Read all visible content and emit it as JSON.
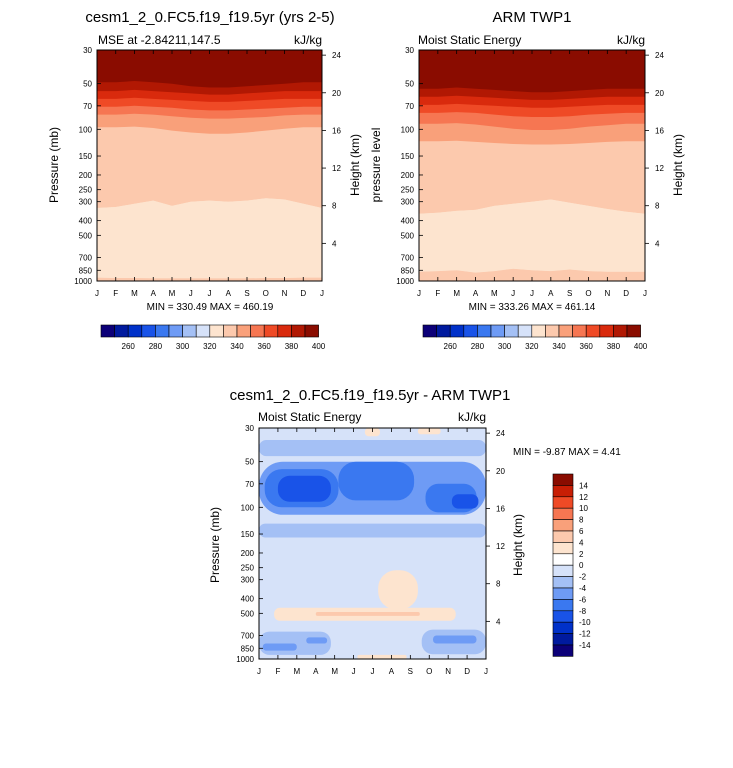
{
  "chart_data": [
    {
      "id": "model",
      "type": "heatmap",
      "title": "cesm1_2_0.FC5.f19_f19.5yr (yrs 2-5)",
      "subtitle_left": "MSE at -2.84211,147.5",
      "subtitle_right": "kJ/kg",
      "ylabel_left": "Pressure (mb)",
      "ylabel_right": "Height (km)",
      "months": [
        "J",
        "F",
        "M",
        "A",
        "M",
        "J",
        "J",
        "A",
        "S",
        "O",
        "N",
        "D",
        "J"
      ],
      "pressure_ticks": [
        "30",
        "50",
        "70",
        "100",
        "150",
        "200",
        "250",
        "300",
        "400",
        "500",
        "700",
        "850",
        "1000"
      ],
      "height_ticks": [
        "24",
        "20",
        "16",
        "12",
        "8",
        "4"
      ],
      "stats": "MIN = 330.49 MAX = 460.19",
      "bands": [
        {
          "level": 400,
          "boundary_mb": [
            49,
            49,
            48,
            49,
            50,
            52,
            53,
            53,
            52,
            51,
            50,
            49,
            49
          ]
        },
        {
          "level": 390,
          "boundary_mb": [
            56,
            56,
            55,
            56,
            57,
            58,
            59,
            59,
            58,
            57,
            56,
            56,
            56
          ]
        },
        {
          "level": 380,
          "boundary_mb": [
            63,
            63,
            62,
            63,
            64,
            65,
            66,
            66,
            65,
            64,
            63,
            63,
            63
          ]
        },
        {
          "level": 370,
          "boundary_mb": [
            71,
            71,
            70,
            71,
            72,
            74,
            75,
            75,
            74,
            73,
            72,
            71,
            71
          ]
        },
        {
          "level": 360,
          "boundary_mb": [
            80,
            80,
            79,
            80,
            82,
            84,
            85,
            85,
            84,
            83,
            81,
            80,
            80
          ]
        },
        {
          "level": 350,
          "boundary_mb": [
            97,
            97,
            96,
            98,
            102,
            105,
            107,
            107,
            105,
            102,
            99,
            97,
            97
          ]
        },
        {
          "level": 340,
          "boundary_mb": [
            330,
            325,
            310,
            295,
            320,
            300,
            295,
            300,
            295,
            285,
            290,
            310,
            330
          ]
        },
        {
          "level": 330,
          "boundary_mb": [
            950,
            955,
            955,
            960,
            960,
            960,
            960,
            960,
            960,
            955,
            955,
            950,
            950
          ]
        }
      ],
      "base_level": 340
    },
    {
      "id": "obs",
      "type": "heatmap",
      "title": "ARM TWP1",
      "subtitle_left": "Moist Static Energy",
      "subtitle_right": "kJ/kg",
      "ylabel_left": "pressure level",
      "ylabel_right": "Height (km)",
      "months": [
        "J",
        "F",
        "M",
        "A",
        "M",
        "J",
        "J",
        "A",
        "S",
        "O",
        "N",
        "D",
        "J"
      ],
      "pressure_ticks": [
        "30",
        "50",
        "70",
        "100",
        "150",
        "200",
        "250",
        "300",
        "400",
        "500",
        "700",
        "850",
        "1000"
      ],
      "height_ticks": [
        "24",
        "20",
        "16",
        "12",
        "8",
        "4"
      ],
      "stats": "MIN = 333.26 MAX = 461.14",
      "bands": [
        {
          "level": 400,
          "boundary_mb": [
            54,
            54,
            53,
            54,
            55,
            56,
            57,
            57,
            56,
            55,
            54,
            54,
            54
          ]
        },
        {
          "level": 390,
          "boundary_mb": [
            61,
            61,
            60,
            61,
            62,
            63,
            64,
            64,
            63,
            62,
            61,
            61,
            61
          ]
        },
        {
          "level": 380,
          "boundary_mb": [
            69,
            69,
            68,
            69,
            70,
            71,
            72,
            72,
            71,
            70,
            69,
            69,
            69
          ]
        },
        {
          "level": 370,
          "boundary_mb": [
            78,
            78,
            77,
            78,
            80,
            82,
            83,
            83,
            82,
            80,
            79,
            78,
            78
          ]
        },
        {
          "level": 360,
          "boundary_mb": [
            92,
            92,
            91,
            93,
            96,
            99,
            101,
            101,
            99,
            96,
            94,
            92,
            92
          ]
        },
        {
          "level": 350,
          "boundary_mb": [
            120,
            120,
            119,
            121,
            123,
            125,
            126,
            126,
            125,
            123,
            121,
            120,
            120
          ]
        },
        {
          "level": 340,
          "boundary_mb": [
            360,
            355,
            345,
            340,
            320,
            310,
            300,
            290,
            305,
            320,
            335,
            350,
            360
          ]
        },
        {
          "level": 330,
          "boundary_mb": [
            870,
            860,
            850,
            880,
            860,
            830,
            850,
            860,
            840,
            860,
            870,
            870,
            870
          ]
        }
      ],
      "base_level": 340
    },
    {
      "id": "diff",
      "type": "heatmap",
      "title": "cesm1_2_0.FC5.f19_f19.5yr - ARM TWP1",
      "subtitle_left": "Moist Static Energy",
      "subtitle_right": "kJ/kg",
      "ylabel_left": "Pressure (mb)",
      "ylabel_right": "Height (km)",
      "months": [
        "J",
        "F",
        "M",
        "A",
        "M",
        "J",
        "J",
        "A",
        "S",
        "O",
        "N",
        "D",
        "J"
      ],
      "pressure_ticks": [
        "30",
        "50",
        "70",
        "100",
        "150",
        "200",
        "250",
        "300",
        "400",
        "500",
        "700",
        "850",
        "1000"
      ],
      "height_ticks": [
        "24",
        "20",
        "16",
        "12",
        "8",
        "4"
      ],
      "stats": "MIN =  -9.87 MAX =   4.41",
      "base_level": -2,
      "blobs": [
        {
          "level": -4,
          "x": [
            0,
            12
          ],
          "p": [
            36,
            46
          ]
        },
        {
          "level": -6,
          "x": [
            0,
            12
          ],
          "p": [
            50,
            112
          ]
        },
        {
          "level": -8,
          "x": [
            0.3,
            4.2
          ],
          "p": [
            56,
            100
          ]
        },
        {
          "level": -8,
          "x": [
            4.2,
            8.2
          ],
          "p": [
            50,
            90
          ]
        },
        {
          "level": -8,
          "x": [
            8.8,
            11.5
          ],
          "p": [
            70,
            108
          ]
        },
        {
          "level": -10,
          "x": [
            1,
            3.8
          ],
          "p": [
            62,
            92
          ]
        },
        {
          "level": -10,
          "x": [
            10.2,
            11.6
          ],
          "p": [
            82,
            102
          ]
        },
        {
          "level": -4,
          "x": [
            0,
            12
          ],
          "p": [
            128,
            158
          ]
        },
        {
          "level": 2,
          "x": [
            6.3,
            8.4
          ],
          "p": [
            260,
            470
          ]
        },
        {
          "level": 2,
          "x": [
            0.8,
            10.4
          ],
          "p": [
            460,
            560
          ]
        },
        {
          "level": 4,
          "x": [
            3,
            8.5
          ],
          "p": [
            490,
            520
          ]
        },
        {
          "level": -4,
          "x": [
            0,
            3.8
          ],
          "p": [
            660,
            940
          ]
        },
        {
          "level": -6,
          "x": [
            0.2,
            2
          ],
          "p": [
            790,
            880
          ]
        },
        {
          "level": -6,
          "x": [
            2.5,
            3.6
          ],
          "p": [
            720,
            790
          ]
        },
        {
          "level": -4,
          "x": [
            8.6,
            12
          ],
          "p": [
            640,
            930
          ]
        },
        {
          "level": -6,
          "x": [
            9.2,
            11.5
          ],
          "p": [
            700,
            790
          ]
        },
        {
          "level": 2,
          "x": [
            5.2,
            7.8
          ],
          "p": [
            940,
            1000
          ]
        },
        {
          "level": 2,
          "x": [
            5.6,
            6.4
          ],
          "p": [
            30,
            34
          ]
        },
        {
          "level": 2,
          "x": [
            8.4,
            9.6
          ],
          "p": [
            30,
            33
          ]
        }
      ]
    }
  ],
  "colorbar_abs": {
    "labels": [
      "260",
      "280",
      "300",
      "320",
      "340",
      "360",
      "380",
      "400"
    ],
    "colors": [
      "#0c0078",
      "#001a9e",
      "#0031c9",
      "#1953e8",
      "#3a78f0",
      "#6e9bf5",
      "#a4c0f5",
      "#d6e2f9",
      "#fde4cf",
      "#fcc9ad",
      "#f9a07a",
      "#f67652",
      "#ef4a26",
      "#d92a0d",
      "#b11803",
      "#8a0c00"
    ]
  },
  "colorbar_diff": {
    "labels": [
      "14",
      "12",
      "10",
      "8",
      "6",
      "4",
      "2",
      "0",
      "-2",
      "-4",
      "-6",
      "-8",
      "-10",
      "-12",
      "-14"
    ],
    "colors": [
      "#8a0c00",
      "#c81e05",
      "#ef4a26",
      "#f67652",
      "#f9a07a",
      "#fcc9ad",
      "#fde4cf",
      "#ffffff",
      "#d6e2f9",
      "#a4c0f5",
      "#6e9bf5",
      "#3a78f0",
      "#1953e8",
      "#0031c9",
      "#001a9e",
      "#0c0078"
    ]
  },
  "level_colors": {
    "400": "#8a0c00",
    "390": "#b11803",
    "380": "#d92a0d",
    "370": "#ef4a26",
    "360": "#f67652",
    "350": "#f9a07a",
    "340": "#fcc9ad",
    "330": "#fde4cf",
    "2": "#fde4cf",
    "4": "#fcc9ad",
    "-2": "#d6e2f9",
    "-4": "#a4c0f5",
    "-6": "#6e9bf5",
    "-8": "#3a78f0",
    "-10": "#1953e8"
  }
}
